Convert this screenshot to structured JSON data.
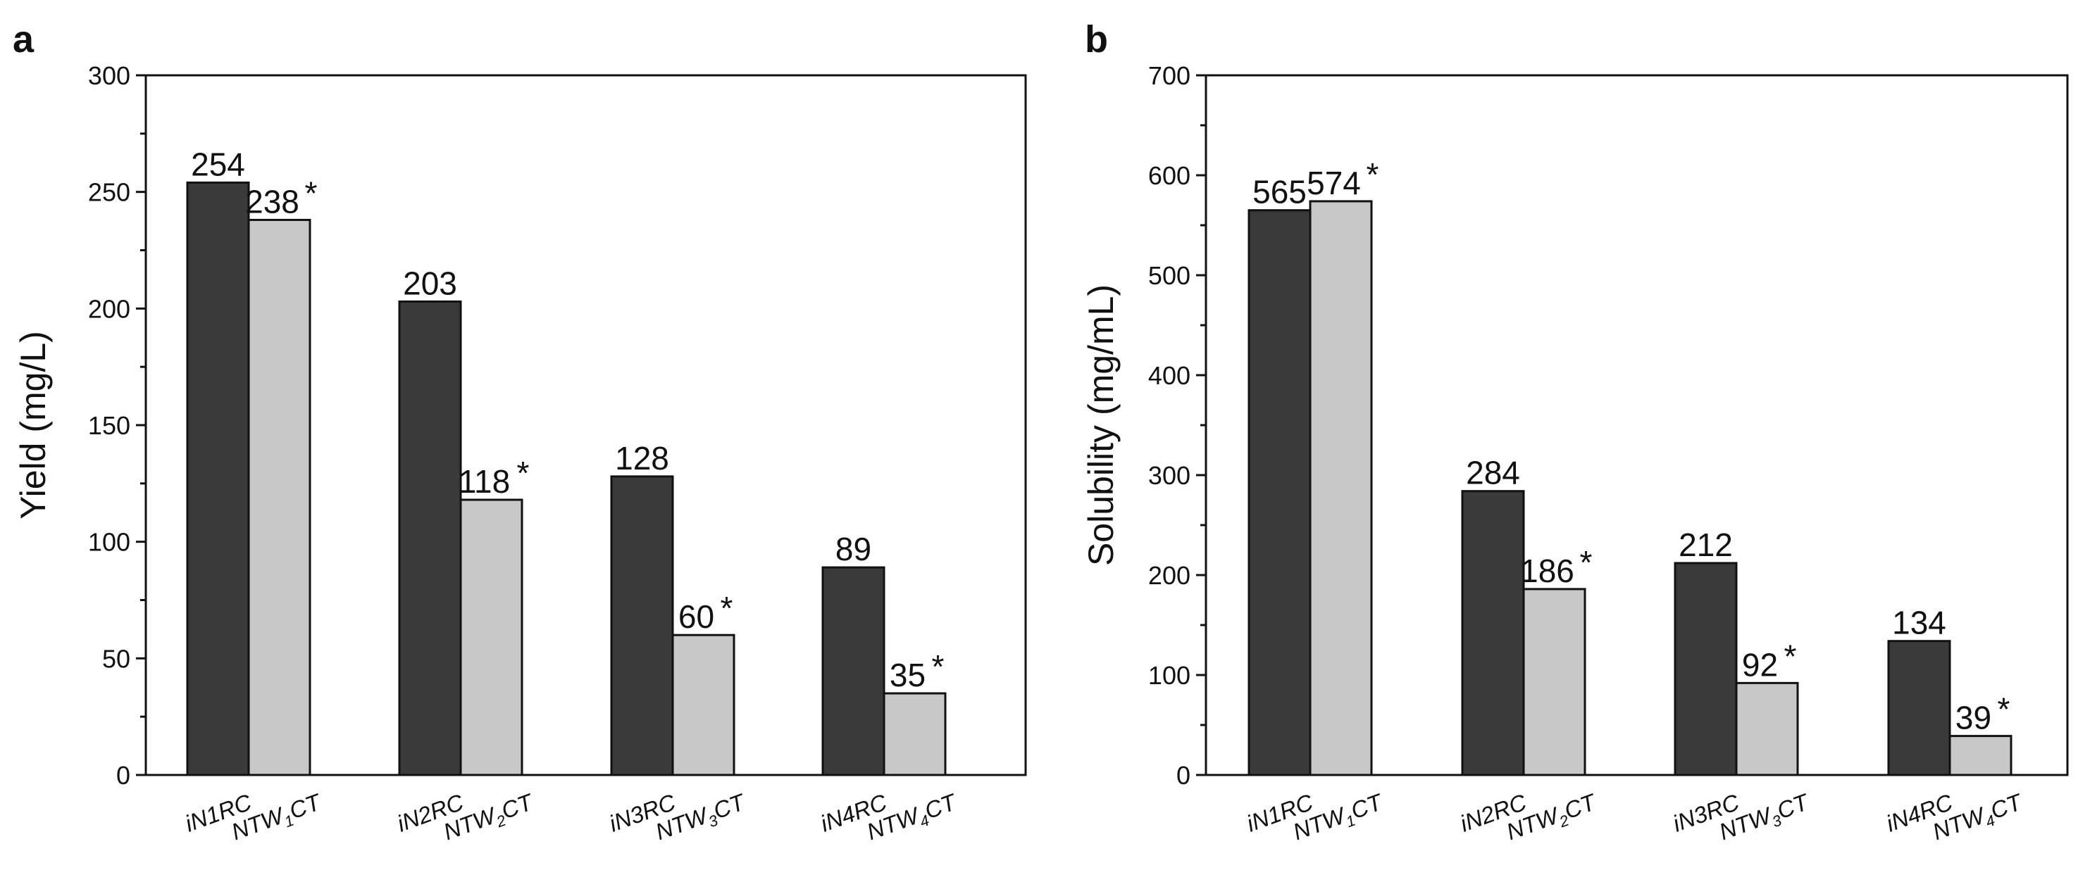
{
  "colors": {
    "dark_bar": "#3a3a3a",
    "light_bar": "#c8c8c8",
    "axis": "#111111"
  },
  "chart_data": [
    {
      "panel": "a",
      "type": "bar",
      "ylabel": "Yield (mg/L)",
      "ylim": [
        0,
        300
      ],
      "yticks": [
        0,
        50,
        100,
        150,
        200,
        250,
        300
      ],
      "groups": [
        {
          "dark": {
            "label": "iN1RC",
            "value": 254,
            "display": "254",
            "star": false
          },
          "light": {
            "label_main": "NTW",
            "label_sub": "1",
            "label_tail": "CT",
            "value": 238,
            "display": "238",
            "star": true
          }
        },
        {
          "dark": {
            "label": "iN2RC",
            "value": 203,
            "display": "203",
            "star": false
          },
          "light": {
            "label_main": "NTW",
            "label_sub": "2",
            "label_tail": "CT",
            "value": 118,
            "display": "118",
            "star": true
          }
        },
        {
          "dark": {
            "label": "iN3RC",
            "value": 128,
            "display": "128",
            "star": false
          },
          "light": {
            "label_main": "NTW",
            "label_sub": "3",
            "label_tail": "CT",
            "value": 60,
            "display": "60",
            "star": true
          }
        },
        {
          "dark": {
            "label": "iN4RC",
            "value": 89,
            "display": "89",
            "star": false
          },
          "light": {
            "label_main": "NTW",
            "label_sub": "4",
            "label_tail": "CT",
            "value": 35,
            "display": "35",
            "star": true
          }
        }
      ]
    },
    {
      "panel": "b",
      "type": "bar",
      "ylabel": "Solubility (mg/mL)",
      "ylim": [
        0,
        700
      ],
      "yticks": [
        0,
        100,
        200,
        300,
        400,
        500,
        600,
        700
      ],
      "groups": [
        {
          "dark": {
            "label": "iN1RC",
            "value": 565,
            "display": "565",
            "star": false
          },
          "light": {
            "label_main": "NTW",
            "label_sub": "1",
            "label_tail": "CT",
            "value": 574,
            "display": "574",
            "star": true
          }
        },
        {
          "dark": {
            "label": "iN2RC",
            "value": 284,
            "display": "284",
            "star": false
          },
          "light": {
            "label_main": "NTW",
            "label_sub": "2",
            "label_tail": "CT",
            "value": 186,
            "display": "186",
            "star": true
          }
        },
        {
          "dark": {
            "label": "iN3RC",
            "value": 212,
            "display": "212",
            "star": false
          },
          "light": {
            "label_main": "NTW",
            "label_sub": "3",
            "label_tail": "CT",
            "value": 92,
            "display": "92",
            "star": true
          }
        },
        {
          "dark": {
            "label": "iN4RC",
            "value": 134,
            "display": "134",
            "star": false
          },
          "light": {
            "label_main": "NTW",
            "label_sub": "4",
            "label_tail": "CT",
            "value": 39,
            "display": "39",
            "star": true
          }
        }
      ]
    }
  ]
}
